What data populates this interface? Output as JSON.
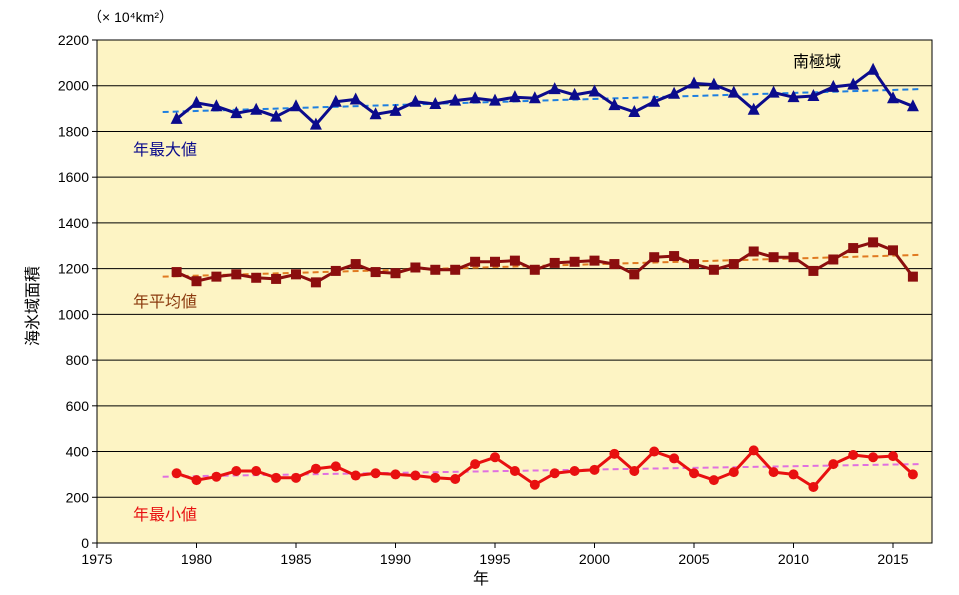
{
  "chart_data": {
    "type": "line",
    "unit_label": "（× 10⁴km²）",
    "region_label": "南極域",
    "xlabel": "年",
    "ylabel": "海氷域面積",
    "xlim": [
      1975,
      2017
    ],
    "ylim": [
      0,
      2200
    ],
    "x_ticks": [
      "1975",
      "1980",
      "1985",
      "1990",
      "1995",
      "2000",
      "2005",
      "2010",
      "2015"
    ],
    "y_ticks": [
      "0",
      "200",
      "400",
      "600",
      "800",
      "1000",
      "1200",
      "1400",
      "1600",
      "1800",
      "2000",
      "2200"
    ],
    "grid": true,
    "background": "#fdf4c4",
    "x": [
      1979,
      1980,
      1981,
      1982,
      1983,
      1984,
      1985,
      1986,
      1987,
      1988,
      1989,
      1990,
      1991,
      1992,
      1993,
      1994,
      1995,
      1996,
      1997,
      1998,
      1999,
      2000,
      2001,
      2002,
      2003,
      2004,
      2005,
      2006,
      2007,
      2008,
      2009,
      2010,
      2011,
      2012,
      2013,
      2014,
      2015,
      2016
    ],
    "series": [
      {
        "name": "年最大値",
        "color": "#0b0b8c",
        "trend_color": "#1e7fe0",
        "marker": "triangle",
        "values": [
          1855,
          1925,
          1910,
          1880,
          1895,
          1865,
          1910,
          1830,
          1930,
          1940,
          1875,
          1890,
          1930,
          1920,
          1935,
          1945,
          1935,
          1950,
          1945,
          1985,
          1960,
          1975,
          1915,
          1885,
          1930,
          1965,
          2010,
          2005,
          1970,
          1895,
          1970,
          1950,
          1955,
          1995,
          2005,
          2070,
          1945,
          1910
        ],
        "trend": [
          1885,
          1985
        ]
      },
      {
        "name": "年平均値",
        "color": "#8b0e0e",
        "trend_color": "#e07a20",
        "marker": "square",
        "values": [
          1185,
          1145,
          1165,
          1175,
          1160,
          1155,
          1175,
          1140,
          1190,
          1220,
          1185,
          1180,
          1205,
          1195,
          1195,
          1230,
          1230,
          1235,
          1195,
          1225,
          1230,
          1235,
          1220,
          1175,
          1250,
          1255,
          1220,
          1195,
          1220,
          1275,
          1250,
          1250,
          1190,
          1240,
          1290,
          1315,
          1280,
          1165
        ],
        "trend": [
          1165,
          1260
        ]
      },
      {
        "name": "年最小値",
        "color": "#e81010",
        "trend_color": "#e070e0",
        "marker": "circle",
        "values": [
          305,
          275,
          290,
          315,
          315,
          285,
          285,
          325,
          335,
          295,
          305,
          300,
          295,
          285,
          280,
          345,
          375,
          315,
          255,
          305,
          315,
          320,
          390,
          315,
          400,
          370,
          305,
          275,
          310,
          405,
          310,
          300,
          245,
          345,
          385,
          375,
          380,
          300
        ],
        "trend": [
          290,
          345
        ]
      }
    ]
  }
}
